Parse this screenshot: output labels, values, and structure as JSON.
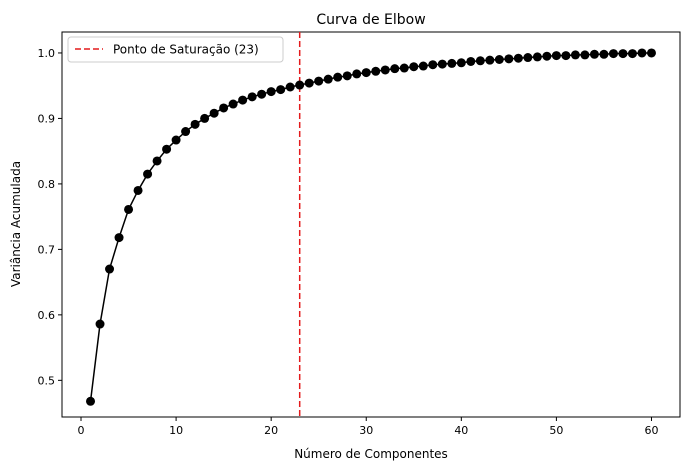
{
  "chart_data": {
    "type": "line",
    "title": "Curva de Elbow",
    "xlabel": "Número de Componentes",
    "ylabel": "Variância Acumulada",
    "xlim": [
      -2,
      63
    ],
    "ylim": [
      0.444,
      1.032
    ],
    "xticks": [
      0,
      10,
      20,
      30,
      40,
      50,
      60
    ],
    "yticks": [
      0.5,
      0.6,
      0.7,
      0.8,
      0.9,
      1.0
    ],
    "ytick_labels": [
      "0.5",
      "0.6",
      "0.7",
      "0.8",
      "0.9",
      "1.0"
    ],
    "grid": false,
    "legend_position": "top-left",
    "series": [
      {
        "color": "#000000",
        "marker": "circle",
        "x": [
          1,
          2,
          3,
          4,
          5,
          6,
          7,
          8,
          9,
          10,
          11,
          12,
          13,
          14,
          15,
          16,
          17,
          18,
          19,
          20,
          21,
          22,
          23,
          24,
          25,
          26,
          27,
          28,
          29,
          30,
          31,
          32,
          33,
          34,
          35,
          36,
          37,
          38,
          39,
          40,
          41,
          42,
          43,
          44,
          45,
          46,
          47,
          48,
          49,
          50,
          51,
          52,
          53,
          54,
          55,
          56,
          57,
          58,
          59,
          60
        ],
        "values": [
          0.468,
          0.586,
          0.67,
          0.718,
          0.761,
          0.79,
          0.815,
          0.835,
          0.853,
          0.867,
          0.88,
          0.891,
          0.9,
          0.908,
          0.916,
          0.922,
          0.928,
          0.933,
          0.937,
          0.941,
          0.944,
          0.948,
          0.951,
          0.954,
          0.957,
          0.96,
          0.963,
          0.965,
          0.968,
          0.97,
          0.972,
          0.974,
          0.976,
          0.977,
          0.979,
          0.98,
          0.982,
          0.983,
          0.984,
          0.985,
          0.987,
          0.988,
          0.989,
          0.99,
          0.991,
          0.992,
          0.993,
          0.994,
          0.995,
          0.996,
          0.996,
          0.997,
          0.997,
          0.998,
          0.998,
          0.999,
          0.999,
          0.999,
          1.0,
          1.0
        ]
      }
    ],
    "vline": {
      "x": 23,
      "color": "#e41a1c",
      "style": "dashed",
      "label": "Ponto de Saturação (23)"
    }
  }
}
